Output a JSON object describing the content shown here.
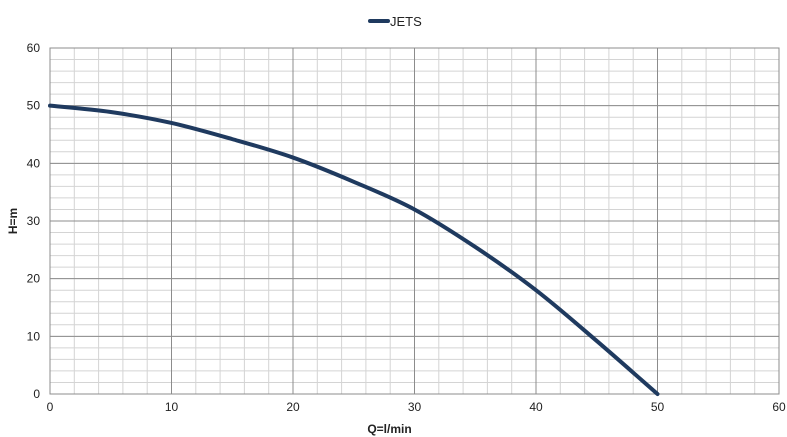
{
  "chart_data": {
    "type": "line",
    "title": "",
    "xlabel": "Q=l/min",
    "ylabel": "H=m",
    "xlim": [
      0,
      60
    ],
    "ylim": [
      0,
      60
    ],
    "xticks": [
      0,
      10,
      20,
      30,
      40,
      50,
      60
    ],
    "yticks": [
      0,
      10,
      20,
      30,
      40,
      50,
      60
    ],
    "x_minor_step": 2,
    "y_minor_step": 2,
    "grid": true,
    "legend_position": "top-center",
    "series": [
      {
        "name": "JETS",
        "color": "#1F3A5F",
        "x": [
          0,
          5,
          10,
          15,
          20,
          25,
          30,
          35,
          40,
          45,
          50
        ],
        "y": [
          50,
          48.9,
          47,
          44.2,
          41,
          36.8,
          32,
          25.5,
          18,
          9.2,
          0
        ]
      }
    ]
  }
}
